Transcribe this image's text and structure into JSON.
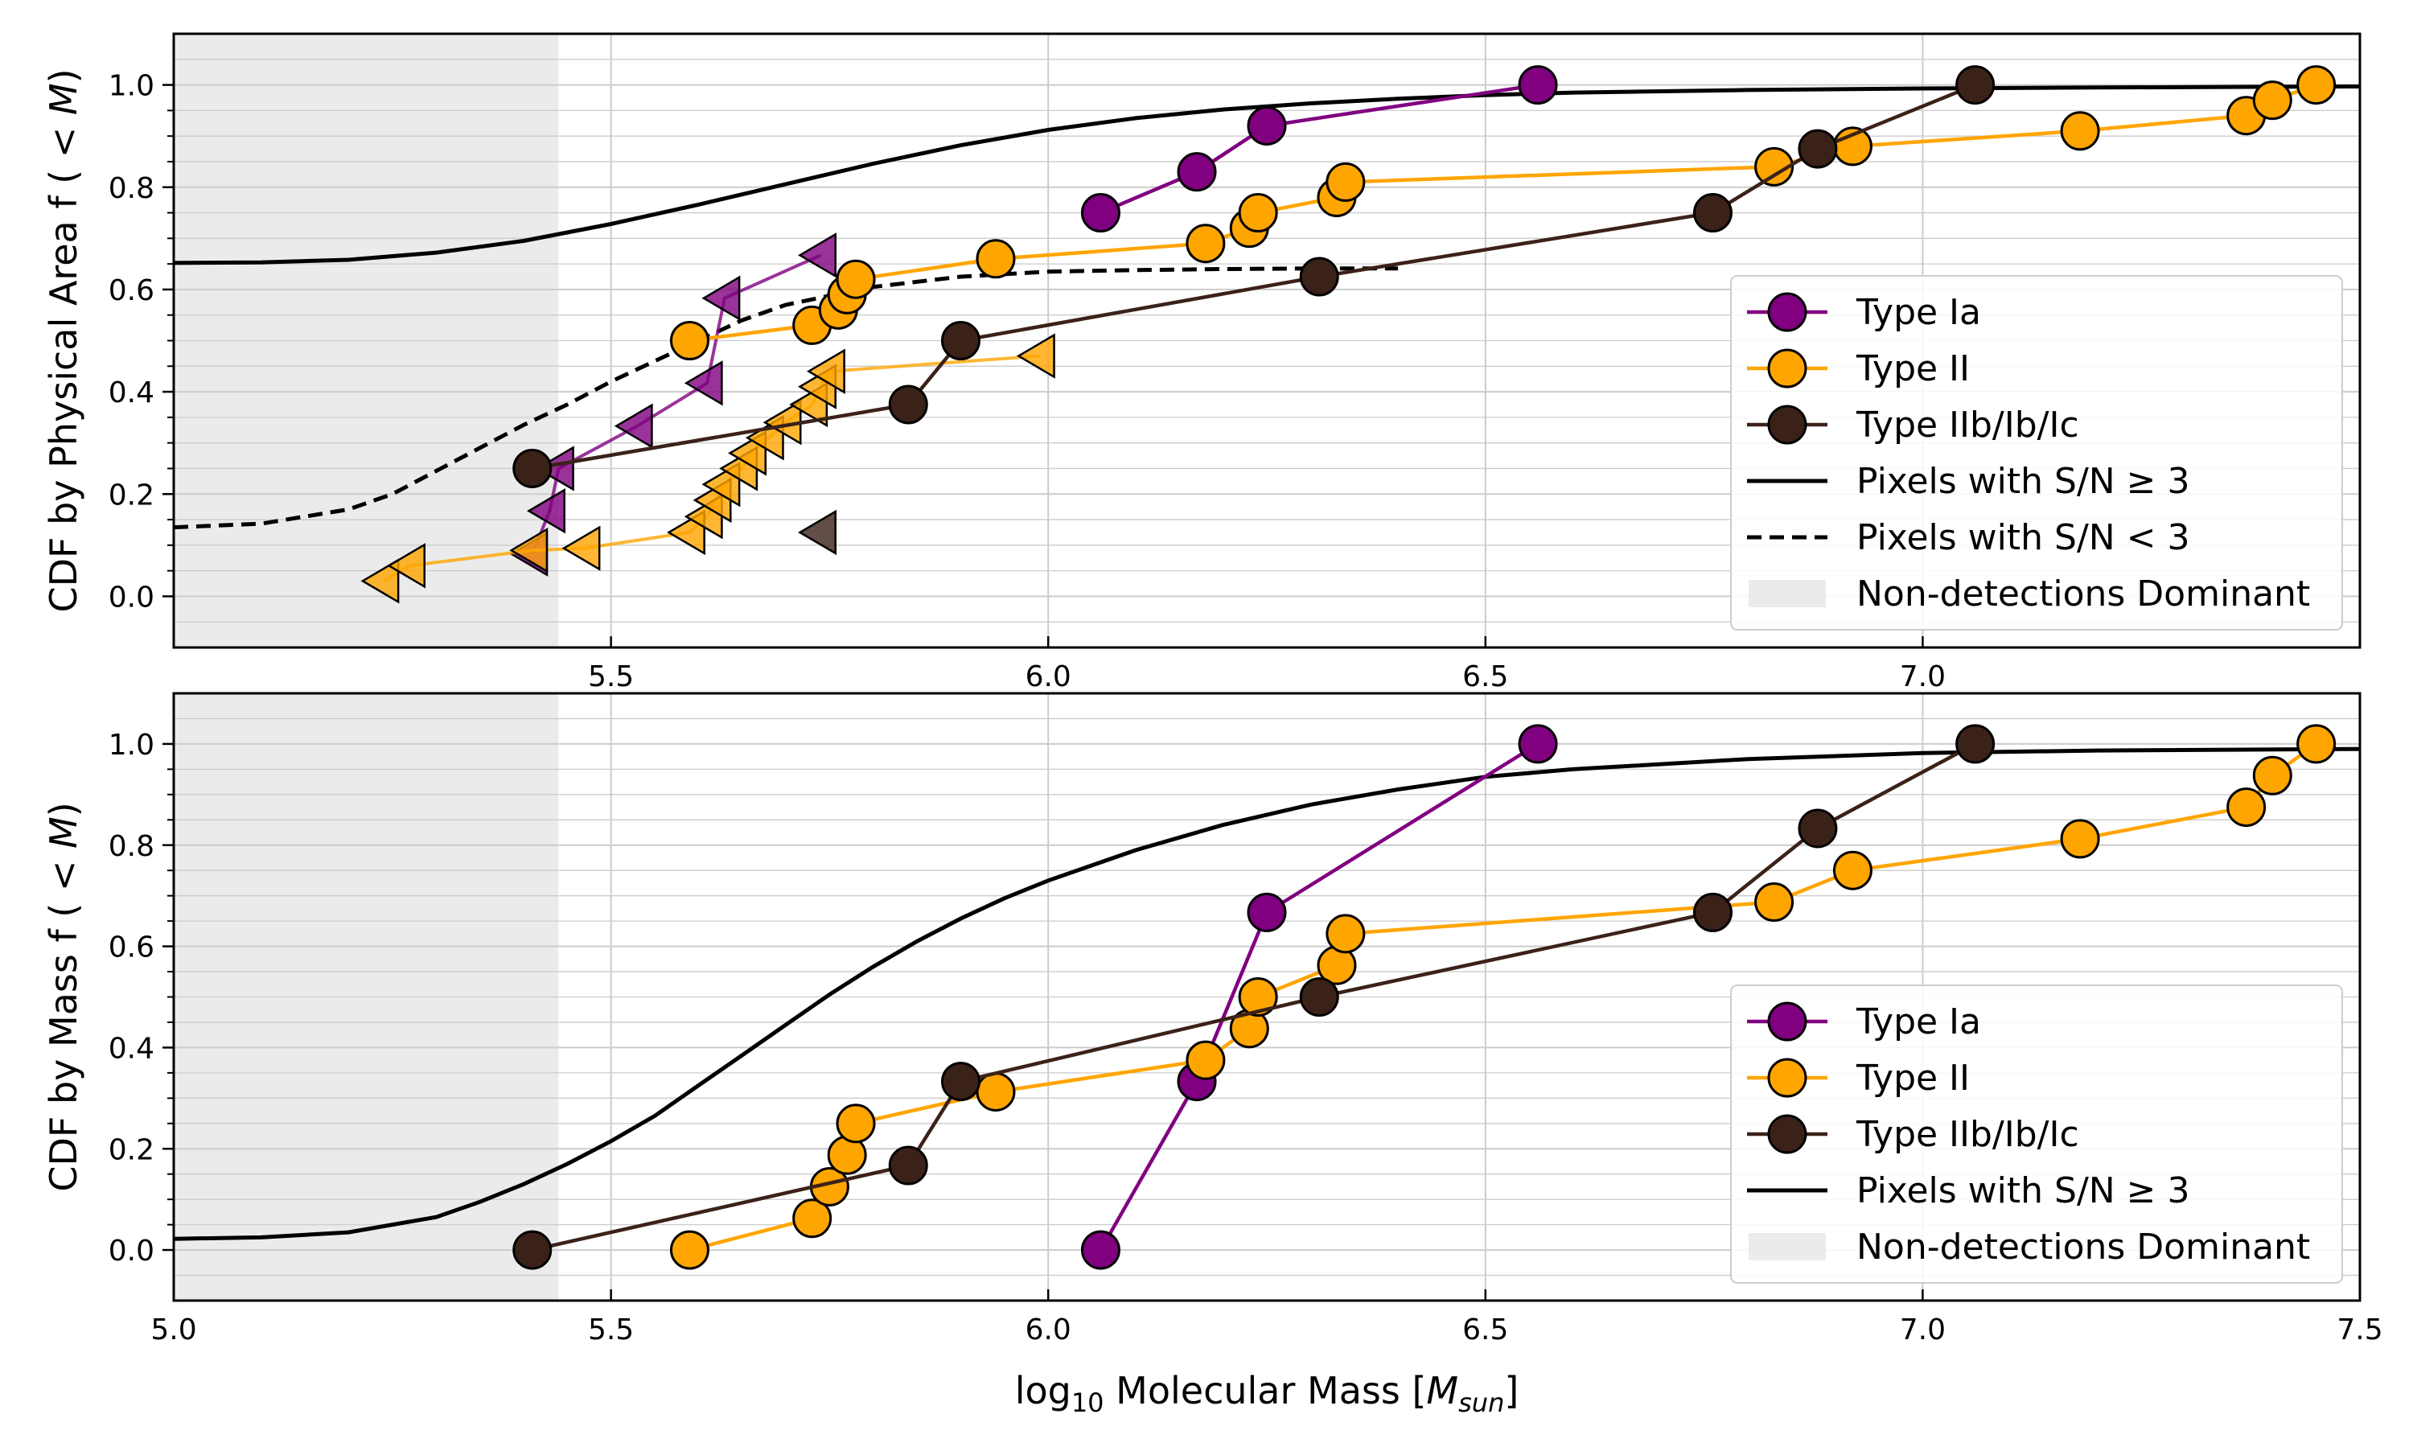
{
  "colors": {
    "type_ia": "#800080",
    "type_ii": "#FFA500",
    "type_iib": "#3B2218",
    "line": "#000000",
    "nondetect": "#EBEBEB",
    "grid": "#CCCCCC"
  },
  "chart_data": [
    {
      "type": "line",
      "panel": "top",
      "ylabel": "CDF by Physical Area f ( < M)",
      "xlabel": "",
      "xlim": [
        5.0,
        7.5
      ],
      "ylim": [
        -0.1,
        1.1
      ],
      "grid": true,
      "nondetections_region": [
        5.0,
        5.44
      ],
      "x_ticks": [
        {
          "v": 5.5,
          "label": "5.5"
        },
        {
          "v": 6.0,
          "label": "6.0"
        },
        {
          "v": 6.5,
          "label": "6.5"
        },
        {
          "v": 7.0,
          "label": "7.0"
        }
      ],
      "y_ticks": [
        {
          "v": 0.0,
          "label": "0.0"
        },
        {
          "v": 0.2,
          "label": "0.2"
        },
        {
          "v": 0.4,
          "label": "0.4"
        },
        {
          "v": 0.6,
          "label": "0.6"
        },
        {
          "v": 0.8,
          "label": "0.8"
        },
        {
          "v": 1.0,
          "label": "1.0"
        }
      ],
      "series": [
        {
          "name": "Type Ia",
          "color_key": "type_ia",
          "marker": "circle",
          "points": [
            [
              6.06,
              0.75
            ],
            [
              6.17,
              0.83
            ],
            [
              6.25,
              0.92
            ],
            [
              6.56,
              1.0
            ]
          ]
        },
        {
          "name": "Type II",
          "color_key": "type_ii",
          "marker": "circle",
          "points": [
            [
              5.59,
              0.5
            ],
            [
              5.73,
              0.53
            ],
            [
              5.76,
              0.56
            ],
            [
              5.77,
              0.59
            ],
            [
              5.78,
              0.62
            ],
            [
              5.94,
              0.66
            ],
            [
              6.18,
              0.69
            ],
            [
              6.23,
              0.72
            ],
            [
              6.24,
              0.75
            ],
            [
              6.33,
              0.78
            ],
            [
              6.34,
              0.81
            ],
            [
              6.83,
              0.84
            ],
            [
              6.92,
              0.88
            ],
            [
              7.18,
              0.91
            ],
            [
              7.37,
              0.94
            ],
            [
              7.4,
              0.97
            ],
            [
              7.45,
              1.0
            ]
          ]
        },
        {
          "name": "Type IIb/Ib/Ic",
          "color_key": "type_iib",
          "marker": "circle",
          "points": [
            [
              5.41,
              0.25
            ],
            [
              5.84,
              0.375
            ],
            [
              5.9,
              0.5
            ],
            [
              6.31,
              0.625
            ],
            [
              6.76,
              0.75
            ],
            [
              6.88,
              0.875
            ],
            [
              7.06,
              1.0
            ]
          ]
        }
      ],
      "upper_limits": [
        {
          "color_key": "type_ia",
          "connected": true,
          "points": [
            [
              5.41,
              0.083
            ],
            [
              5.43,
              0.167
            ],
            [
              5.44,
              0.25
            ],
            [
              5.53,
              0.333
            ],
            [
              5.61,
              0.417
            ],
            [
              5.63,
              0.583
            ],
            [
              5.74,
              0.667
            ]
          ]
        },
        {
          "color_key": "type_ii",
          "connected": true,
          "points": [
            [
              5.24,
              0.03
            ],
            [
              5.27,
              0.06
            ],
            [
              5.41,
              0.09
            ],
            [
              5.47,
              0.094
            ],
            [
              5.59,
              0.125
            ],
            [
              5.61,
              0.156
            ],
            [
              5.62,
              0.188
            ],
            [
              5.63,
              0.219
            ],
            [
              5.65,
              0.25
            ],
            [
              5.66,
              0.28
            ],
            [
              5.68,
              0.31
            ],
            [
              5.7,
              0.34
            ],
            [
              5.73,
              0.375
            ],
            [
              5.74,
              0.41
            ],
            [
              5.75,
              0.44
            ],
            [
              5.99,
              0.47
            ]
          ]
        },
        {
          "color_key": "type_iib",
          "connected": false,
          "points": [
            [
              5.74,
              0.125
            ]
          ]
        }
      ],
      "curves": [
        {
          "name": "Pixels with S/N ≥ 3",
          "style": "solid",
          "points": [
            [
              5.0,
              0.652
            ],
            [
              5.1,
              0.653
            ],
            [
              5.2,
              0.658
            ],
            [
              5.3,
              0.672
            ],
            [
              5.4,
              0.695
            ],
            [
              5.5,
              0.728
            ],
            [
              5.6,
              0.766
            ],
            [
              5.7,
              0.806
            ],
            [
              5.8,
              0.846
            ],
            [
              5.9,
              0.882
            ],
            [
              6.0,
              0.912
            ],
            [
              6.1,
              0.935
            ],
            [
              6.2,
              0.952
            ],
            [
              6.3,
              0.964
            ],
            [
              6.4,
              0.973
            ],
            [
              6.5,
              0.98
            ],
            [
              6.6,
              0.985
            ],
            [
              6.8,
              0.99
            ],
            [
              7.0,
              0.993
            ],
            [
              7.2,
              0.995
            ],
            [
              7.5,
              0.997
            ]
          ]
        },
        {
          "name": "Pixels with S/N < 3",
          "style": "dashed",
          "points": [
            [
              5.0,
              0.135
            ],
            [
              5.1,
              0.142
            ],
            [
              5.2,
              0.17
            ],
            [
              5.25,
              0.2
            ],
            [
              5.3,
              0.245
            ],
            [
              5.35,
              0.29
            ],
            [
              5.4,
              0.335
            ],
            [
              5.45,
              0.375
            ],
            [
              5.5,
              0.42
            ],
            [
              5.55,
              0.46
            ],
            [
              5.6,
              0.5
            ],
            [
              5.65,
              0.54
            ],
            [
              5.7,
              0.57
            ],
            [
              5.8,
              0.605
            ],
            [
              5.9,
              0.625
            ],
            [
              6.0,
              0.635
            ],
            [
              6.1,
              0.638
            ],
            [
              6.2,
              0.64
            ],
            [
              6.3,
              0.641
            ],
            [
              6.4,
              0.641
            ]
          ]
        }
      ],
      "legend": {
        "position": "lower-right",
        "entries": [
          {
            "label": "Type Ia",
            "kind": "marker",
            "color_key": "type_ia"
          },
          {
            "label": "Type II",
            "kind": "marker",
            "color_key": "type_ii"
          },
          {
            "label": "Type IIb/Ib/Ic",
            "kind": "marker",
            "color_key": "type_iib"
          },
          {
            "label": "Pixels with S/N ≥ 3",
            "kind": "solid"
          },
          {
            "label": "Pixels with S/N < 3",
            "kind": "dashed"
          },
          {
            "label": "Non-detections Dominant",
            "kind": "patch"
          }
        ]
      }
    },
    {
      "type": "line",
      "panel": "bottom",
      "ylabel": "CDF by Mass f ( < M)",
      "xlabel": "log10 Molecular Mass [Msun]",
      "xlim": [
        5.0,
        7.5
      ],
      "ylim": [
        -0.1,
        1.1
      ],
      "grid": true,
      "nondetections_region": [
        5.0,
        5.44
      ],
      "x_ticks": [
        {
          "v": 5.0,
          "label": "5.0"
        },
        {
          "v": 5.5,
          "label": "5.5"
        },
        {
          "v": 6.0,
          "label": "6.0"
        },
        {
          "v": 6.5,
          "label": "6.5"
        },
        {
          "v": 7.0,
          "label": "7.0"
        },
        {
          "v": 7.5,
          "label": "7.5"
        }
      ],
      "y_ticks": [
        {
          "v": 0.0,
          "label": "0.0"
        },
        {
          "v": 0.2,
          "label": "0.2"
        },
        {
          "v": 0.4,
          "label": "0.4"
        },
        {
          "v": 0.6,
          "label": "0.6"
        },
        {
          "v": 0.8,
          "label": "0.8"
        },
        {
          "v": 1.0,
          "label": "1.0"
        }
      ],
      "series": [
        {
          "name": "Type Ia",
          "color_key": "type_ia",
          "marker": "circle",
          "points": [
            [
              6.06,
              0.0
            ],
            [
              6.17,
              0.333
            ],
            [
              6.25,
              0.667
            ],
            [
              6.56,
              1.0
            ]
          ]
        },
        {
          "name": "Type II",
          "color_key": "type_ii",
          "marker": "circle",
          "points": [
            [
              5.59,
              0.0
            ],
            [
              5.73,
              0.0625
            ],
            [
              5.75,
              0.125
            ],
            [
              5.77,
              0.1875
            ],
            [
              5.78,
              0.25
            ],
            [
              5.94,
              0.3125
            ],
            [
              6.18,
              0.375
            ],
            [
              6.23,
              0.4375
            ],
            [
              6.24,
              0.5
            ],
            [
              6.33,
              0.5625
            ],
            [
              6.34,
              0.625
            ],
            [
              6.83,
              0.6875
            ],
            [
              6.92,
              0.75
            ],
            [
              7.18,
              0.8125
            ],
            [
              7.37,
              0.875
            ],
            [
              7.4,
              0.9375
            ],
            [
              7.45,
              1.0
            ]
          ]
        },
        {
          "name": "Type IIb/Ib/Ic",
          "color_key": "type_iib",
          "marker": "circle",
          "points": [
            [
              5.41,
              0.0
            ],
            [
              5.84,
              0.167
            ],
            [
              5.9,
              0.333
            ],
            [
              6.31,
              0.5
            ],
            [
              6.76,
              0.667
            ],
            [
              6.88,
              0.833
            ],
            [
              7.06,
              1.0
            ]
          ]
        }
      ],
      "upper_limits": [],
      "curves": [
        {
          "name": "Pixels with S/N ≥ 3",
          "style": "solid",
          "points": [
            [
              5.0,
              0.022
            ],
            [
              5.1,
              0.025
            ],
            [
              5.2,
              0.035
            ],
            [
              5.3,
              0.065
            ],
            [
              5.35,
              0.095
            ],
            [
              5.4,
              0.13
            ],
            [
              5.45,
              0.17
            ],
            [
              5.5,
              0.215
            ],
            [
              5.55,
              0.265
            ],
            [
              5.6,
              0.325
            ],
            [
              5.65,
              0.385
            ],
            [
              5.7,
              0.445
            ],
            [
              5.75,
              0.505
            ],
            [
              5.8,
              0.56
            ],
            [
              5.85,
              0.61
            ],
            [
              5.9,
              0.655
            ],
            [
              5.95,
              0.695
            ],
            [
              6.0,
              0.73
            ],
            [
              6.1,
              0.79
            ],
            [
              6.2,
              0.84
            ],
            [
              6.3,
              0.88
            ],
            [
              6.4,
              0.91
            ],
            [
              6.5,
              0.935
            ],
            [
              6.6,
              0.95
            ],
            [
              6.8,
              0.97
            ],
            [
              7.0,
              0.982
            ],
            [
              7.2,
              0.987
            ],
            [
              7.5,
              0.99
            ]
          ]
        }
      ],
      "legend": {
        "position": "lower-right",
        "entries": [
          {
            "label": "Type Ia",
            "kind": "marker",
            "color_key": "type_ia"
          },
          {
            "label": "Type II",
            "kind": "marker",
            "color_key": "type_ii"
          },
          {
            "label": "Type IIb/Ib/Ic",
            "kind": "marker",
            "color_key": "type_iib"
          },
          {
            "label": "Pixels with S/N ≥ 3",
            "kind": "solid"
          },
          {
            "label": "Non-detections Dominant",
            "kind": "patch"
          }
        ]
      }
    }
  ]
}
